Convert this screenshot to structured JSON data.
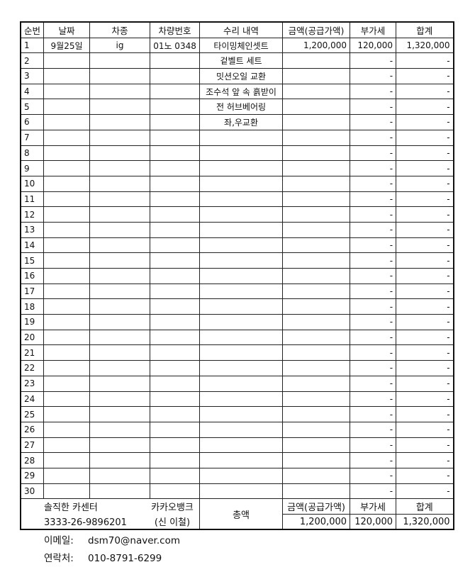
{
  "headers": [
    "순번",
    "날짜",
    "차종",
    "차량번호",
    "수리 내역",
    "금액(공급가액)",
    "부가세",
    "합계"
  ],
  "rows": [
    {
      "no": "1",
      "date": "9월25일",
      "car": "ig",
      "plate": "01노 0348",
      "repair": "타이밍체인셋트",
      "amount": "1,200,000",
      "vat": "120,000",
      "total": "1,320,000"
    },
    {
      "no": "2",
      "date": "",
      "car": "",
      "plate": "",
      "repair": "겉벨트 세트",
      "amount": "",
      "vat": "-",
      "total": "-"
    },
    {
      "no": "3",
      "date": "",
      "car": "",
      "plate": "",
      "repair": "밋션오일 교환",
      "amount": "",
      "vat": "-",
      "total": "-"
    },
    {
      "no": "4",
      "date": "",
      "car": "",
      "plate": "",
      "repair": "조수석 앞 속 흙받이",
      "amount": "",
      "vat": "-",
      "total": "-"
    },
    {
      "no": "5",
      "date": "",
      "car": "",
      "plate": "",
      "repair": "전 허브베어링",
      "amount": "",
      "vat": "-",
      "total": "-"
    },
    {
      "no": "6",
      "date": "",
      "car": "",
      "plate": "",
      "repair": "좌,우교환",
      "amount": "",
      "vat": "-",
      "total": "-"
    },
    {
      "no": "7",
      "vat": "-",
      "total": "-"
    },
    {
      "no": "8",
      "vat": "-",
      "total": "-"
    },
    {
      "no": "9",
      "vat": "-",
      "total": "-"
    },
    {
      "no": "10",
      "vat": "-",
      "total": "-"
    },
    {
      "no": "11",
      "vat": "-",
      "total": "-"
    },
    {
      "no": "12",
      "vat": "-",
      "total": "-"
    },
    {
      "no": "13",
      "vat": "-",
      "total": "-"
    },
    {
      "no": "14",
      "vat": "-",
      "total": "-"
    },
    {
      "no": "15",
      "vat": "-",
      "total": "-"
    },
    {
      "no": "16",
      "vat": "-",
      "total": "-"
    },
    {
      "no": "17",
      "vat": "-",
      "total": "-"
    },
    {
      "no": "18",
      "vat": "-",
      "total": "-"
    },
    {
      "no": "19",
      "vat": "-",
      "total": "-"
    },
    {
      "no": "20",
      "vat": "-",
      "total": "-"
    },
    {
      "no": "21",
      "vat": "-",
      "total": "-"
    },
    {
      "no": "22",
      "vat": "-",
      "total": "-"
    },
    {
      "no": "23",
      "vat": "-",
      "total": "-"
    },
    {
      "no": "24",
      "vat": "-",
      "total": "-"
    },
    {
      "no": "25",
      "vat": "-",
      "total": "-"
    },
    {
      "no": "26",
      "vat": "-",
      "total": "-"
    },
    {
      "no": "27",
      "vat": "-",
      "total": "-"
    },
    {
      "no": "28",
      "vat": "-",
      "total": "-"
    },
    {
      "no": "29",
      "vat": "-",
      "total": "-"
    },
    {
      "no": "30",
      "vat": "-",
      "total": "-"
    }
  ],
  "footer": {
    "shop_name": "솔직한 카센터",
    "bank": "카카오뱅크",
    "account": "3333-26-9896201",
    "holder": "(신 이철)",
    "total_label": "총액",
    "amount_label": "금액(공급가액)",
    "vat_label": "부가세",
    "sum_label": "합계",
    "amount": "1,200,000",
    "vat": "120,000",
    "sum": "1,320,000"
  },
  "contact": {
    "email_label": "이메일:",
    "email": "dsm70@naver.com",
    "phone_label": "연락처:",
    "phone": "010-8791-6299"
  }
}
